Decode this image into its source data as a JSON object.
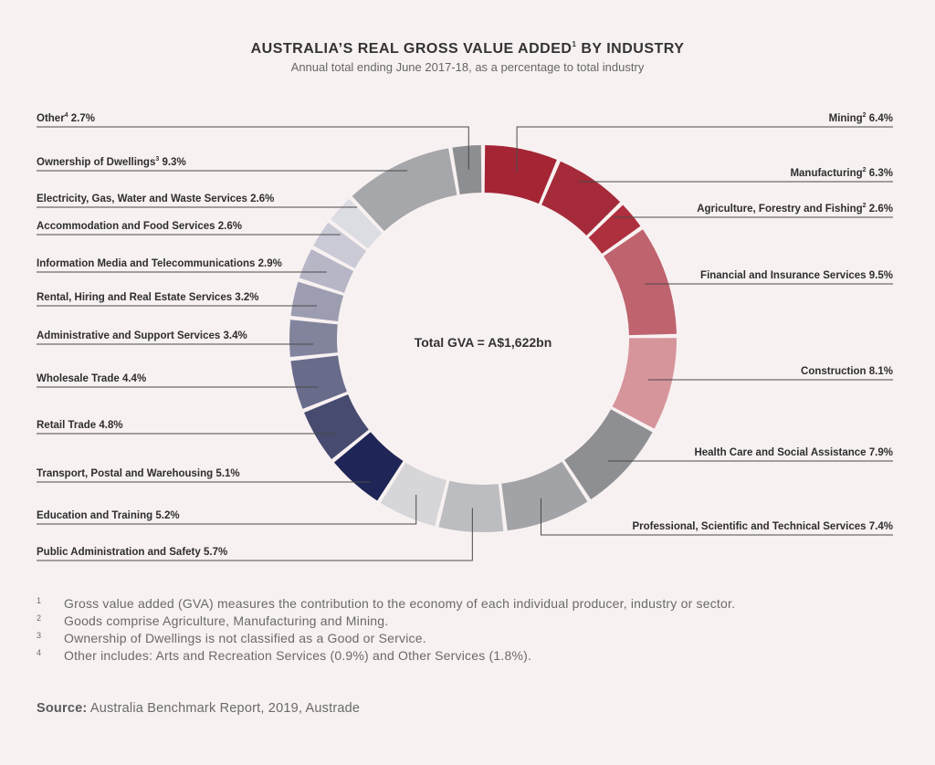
{
  "chart_data": {
    "type": "pie",
    "variant": "donut",
    "title": "AUSTRALIA’S REAL GROSS VALUE ADDED",
    "title_sup": "1",
    "title_suffix": " BY INDUSTRY",
    "subtitle": "Annual total ending June 2017-18, as a percentage to total industry",
    "center_label": "Total GVA = A$1,622bn",
    "unit": "%",
    "slices": [
      {
        "label": "Mining",
        "sup": "2",
        "value": 6.4,
        "value_text": "6.4%",
        "color": "#a52535",
        "side": "right"
      },
      {
        "label": "Manufacturing",
        "sup": "2",
        "value": 6.3,
        "value_text": "6.3%",
        "color": "#a52a3a",
        "side": "right"
      },
      {
        "label": "Agriculture, Forestry and Fishing",
        "sup": "2",
        "value": 2.6,
        "value_text": "2.6%",
        "color": "#ae2f3e",
        "side": "right"
      },
      {
        "label": "Financial and Insurance Services",
        "sup": "",
        "value": 9.5,
        "value_text": "9.5%",
        "color": "#bf636e",
        "side": "right"
      },
      {
        "label": "Construction",
        "sup": "",
        "value": 8.1,
        "value_text": "8.1%",
        "color": "#d6949b",
        "side": "right"
      },
      {
        "label": "Health Care and Social Assistance",
        "sup": "",
        "value": 7.9,
        "value_text": "7.9%",
        "color": "#8e8f92",
        "side": "right"
      },
      {
        "label": "Professional, Scientific and Technical Services",
        "sup": "",
        "value": 7.4,
        "value_text": "7.4%",
        "color": "#a2a3a6",
        "side": "right"
      },
      {
        "label": "Public Administration and Safety",
        "sup": "",
        "value": 5.7,
        "value_text": "5.7%",
        "color": "#bcbdc0",
        "side": "left"
      },
      {
        "label": "Education and Training",
        "sup": "",
        "value": 5.2,
        "value_text": "5.2%",
        "color": "#d6d6d8",
        "side": "left"
      },
      {
        "label": "Transport, Postal and Warehousing",
        "sup": "",
        "value": 5.1,
        "value_text": "5.1%",
        "color": "#1f2556",
        "side": "left"
      },
      {
        "label": "Retail Trade",
        "sup": "",
        "value": 4.8,
        "value_text": "4.8%",
        "color": "#474b70",
        "side": "left"
      },
      {
        "label": "Wholesale Trade",
        "sup": "",
        "value": 4.4,
        "value_text": "4.4%",
        "color": "#686b8a",
        "side": "left"
      },
      {
        "label": "Administrative and Support Services",
        "sup": "",
        "value": 3.4,
        "value_text": "3.4%",
        "color": "#82849d",
        "side": "left"
      },
      {
        "label": "Rental, Hiring and Real Estate Services",
        "sup": "",
        "value": 3.2,
        "value_text": "3.2%",
        "color": "#9c9db1",
        "side": "left"
      },
      {
        "label": "Information Media and Telecommunications",
        "sup": "",
        "value": 2.9,
        "value_text": "2.9%",
        "color": "#b6b6c6",
        "side": "left"
      },
      {
        "label": "Accommodation and Food Services",
        "sup": "",
        "value": 2.6,
        "value_text": "2.6%",
        "color": "#cacad6",
        "side": "left"
      },
      {
        "label": "Electricity, Gas, Water and Waste Services",
        "sup": "",
        "value": 2.6,
        "value_text": "2.6%",
        "color": "#dcdce3",
        "side": "left"
      },
      {
        "label": "Ownership of Dwellings",
        "sup": "3",
        "value": 9.3,
        "value_text": "9.3%",
        "color": "#a6a7aa",
        "side": "left"
      },
      {
        "label": "Other",
        "sup": "4",
        "value": 2.7,
        "value_text": "2.7%",
        "color": "#8d8e91",
        "side": "left"
      }
    ]
  },
  "footnotes": [
    {
      "num": "1",
      "text": "Gross value added (GVA) measures the contribution to the economy of each individual producer, industry or sector."
    },
    {
      "num": "2",
      "text": "Goods comprise Agriculture, Manufacturing and Mining."
    },
    {
      "num": "3",
      "text": "Ownership of Dwellings is not classified as a Good or Service."
    },
    {
      "num": "4",
      "text": "Other includes: Arts and Recreation Services (0.9%) and Other Services (1.8%)."
    }
  ],
  "source": {
    "label": "Source:",
    "text": " Australia Benchmark Report, 2019, Austrade"
  }
}
